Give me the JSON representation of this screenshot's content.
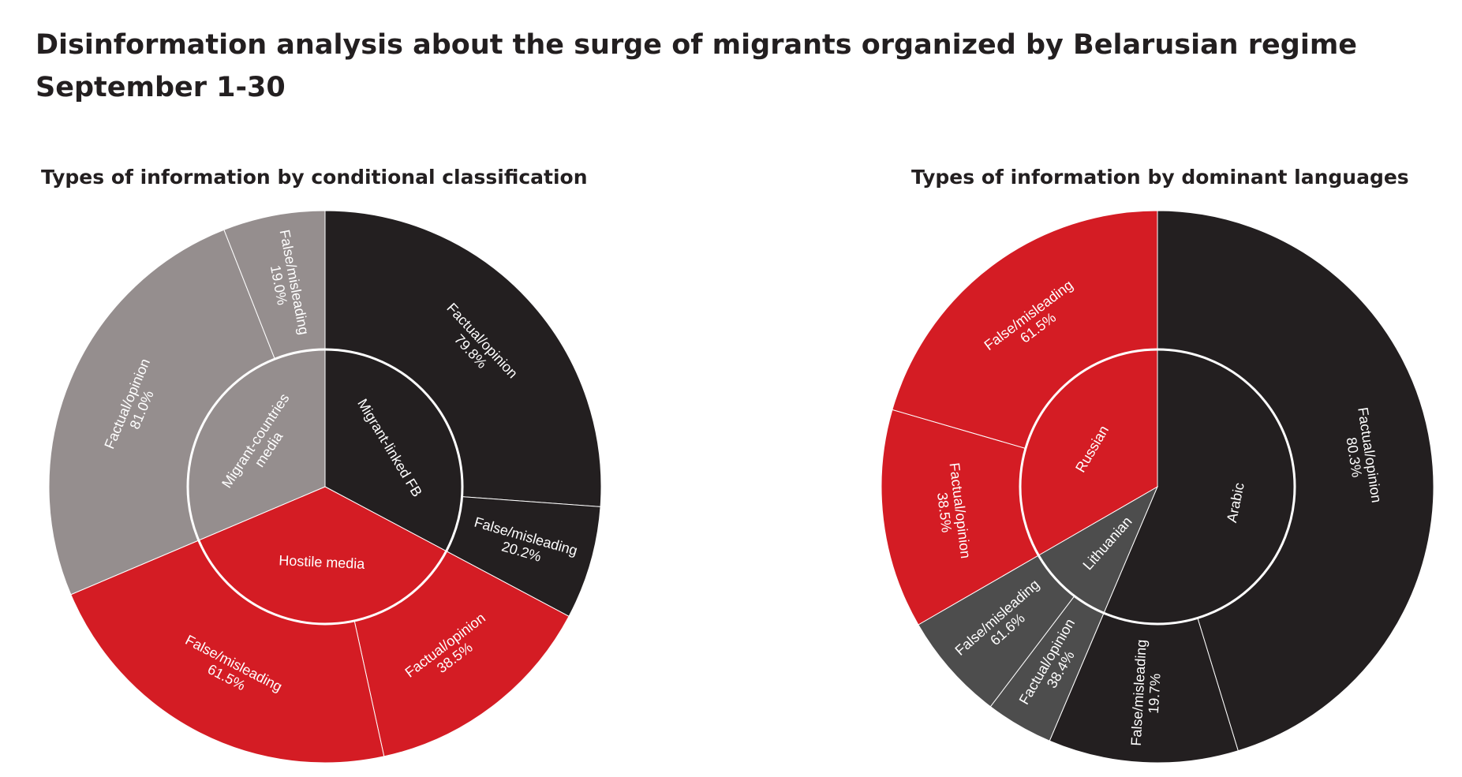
{
  "title": "Disinformation analysis about the surge of migrants organized by Belarusian regime",
  "subtitle": "September 1-30",
  "chart_data": [
    {
      "type": "sunburst",
      "title": "Types of information by conditional classification",
      "colors": {
        "Migrant-linked FB": "#231f20",
        "Hostile media": "#d41c24",
        "Migrant-countries media": "#958e8e"
      },
      "outer_labels": [
        "Factual/opinion",
        "False/misleading"
      ],
      "inner": [
        {
          "name": "Migrant-linked FB",
          "start_deg": 0,
          "end_deg": 118,
          "children": [
            {
              "label": "Factual/opinion",
              "pct": "79.8%",
              "value": 79.8
            },
            {
              "label": "False/misleading",
              "pct": "20.2%",
              "value": 20.2
            }
          ]
        },
        {
          "name": "Hostile media",
          "start_deg": 118,
          "end_deg": 247,
          "children": [
            {
              "label": "Factual/opinion",
              "pct": "38.5%",
              "value": 38.5
            },
            {
              "label": "False/misleading",
              "pct": "61.5%",
              "value": 61.5
            }
          ]
        },
        {
          "name": "Migrant-countries media",
          "start_deg": 247,
          "end_deg": 360,
          "children": [
            {
              "label": "Factual/opinion",
              "pct": "81.0%",
              "value": 81.0
            },
            {
              "label": "False/misleading",
              "pct": "19.0%",
              "value": 19.0
            }
          ]
        }
      ]
    },
    {
      "type": "sunburst",
      "title": "Types of information by dominant languages",
      "colors": {
        "Arabic": "#231f20",
        "Lithuanian": "#4d4d4d",
        "Russian": "#d41c24"
      },
      "outer_labels": [
        "Factual/opinion",
        "False/misleading"
      ],
      "inner": [
        {
          "name": "Arabic",
          "start_deg": 0,
          "end_deg": 203,
          "children": [
            {
              "label": "Factual/opinion",
              "pct": "80.3%",
              "value": 80.3
            },
            {
              "label": "False/misleading",
              "pct": "19.7%",
              "value": 19.7
            }
          ]
        },
        {
          "name": "Lithuanian",
          "start_deg": 203,
          "end_deg": 240,
          "children": [
            {
              "label": "Factual/opinion",
              "pct": "38.4%",
              "value": 38.4
            },
            {
              "label": "False/misleading",
              "pct": "61.6%",
              "value": 61.6
            }
          ]
        },
        {
          "name": "Russian",
          "start_deg": 240,
          "end_deg": 360,
          "children": [
            {
              "label": "Factual/opinion",
              "pct": "38.5%",
              "value": 38.5
            },
            {
              "label": "False/misleading",
              "pct": "61.5%",
              "value": 61.5
            }
          ]
        }
      ]
    }
  ]
}
